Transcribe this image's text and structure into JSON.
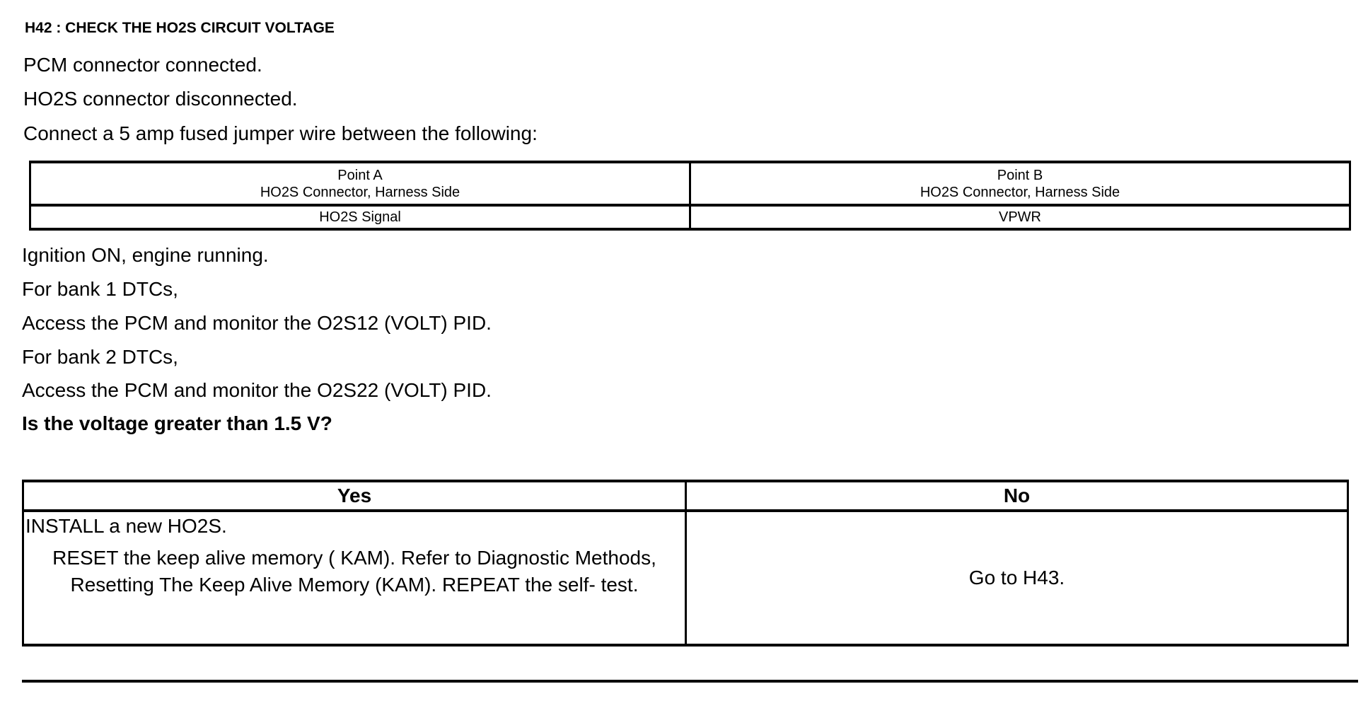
{
  "title": "H42 : CHECK THE HO2S CIRCUIT VOLTAGE",
  "steps_before": [
    "PCM connector connected.",
    "HO2S connector disconnected.",
    "Connect a 5 amp fused jumper wire between the following:"
  ],
  "jumper_table": {
    "point_a_header": "Point A",
    "point_a_sub": "HO2S Connector, Harness Side",
    "point_b_header": "Point B",
    "point_b_sub": "HO2S Connector, Harness Side",
    "point_a_value": "HO2S Signal",
    "point_b_value": "VPWR"
  },
  "steps_after": [
    "Ignition ON, engine running.",
    "For bank 1 DTCs,",
    "Access the PCM and monitor the  O2S12 (VOLT) PID.",
    "For bank 2 DTCs,",
    "Access the PCM and monitor the  O2S22 (VOLT) PID."
  ],
  "question": "Is the voltage greater than 1.5 V?",
  "result_table": {
    "yes_header": "Yes",
    "no_header": "No",
    "yes_line1": "INSTALL a new HO2S.",
    "yes_line2": "RESET the keep alive memory ( KAM). Refer to Diagnostic Methods, Resetting The Keep Alive Memory (KAM). REPEAT the self- test.",
    "no_action": "Go to H43."
  }
}
